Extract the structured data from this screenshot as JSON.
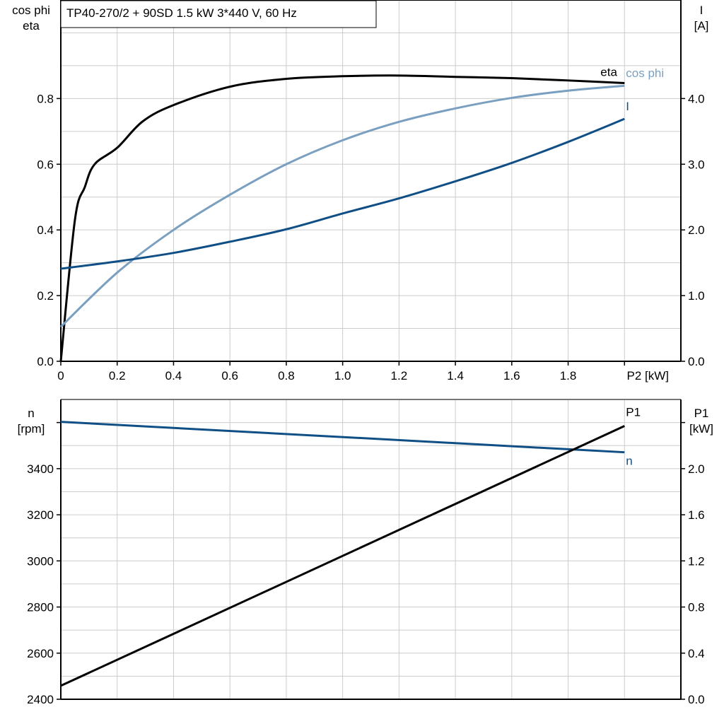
{
  "chart_data": [
    {
      "type": "line",
      "title": "TP40-270/2 + 90SD   1.5 kW   3*440 V, 60 Hz",
      "xlabel": "P2 [kW]",
      "ylabel_left": [
        "cos phi",
        "eta"
      ],
      "ylabel_right": [
        "I",
        "[A]"
      ],
      "xlim": [
        0,
        2.2
      ],
      "ylim_left": [
        0,
        1.1
      ],
      "ylim_right": [
        0,
        5.5
      ],
      "x_ticks": [
        "0",
        "0.2",
        "0.4",
        "0.6",
        "0.8",
        "1.0",
        "1.2",
        "1.4",
        "1.6",
        "1.8"
      ],
      "y_left_ticks": [
        "0.0",
        "0.2",
        "0.4",
        "0.6",
        "0.8"
      ],
      "y_right_ticks": [
        "0.0",
        "1.0",
        "2.0",
        "3.0",
        "4.0"
      ],
      "grid": true,
      "series": [
        {
          "name": "eta",
          "axis": "left",
          "color": "#000000",
          "x": [
            0,
            0.05,
            0.085,
            0.12,
            0.2,
            0.29,
            0.4,
            0.6,
            0.8,
            1.0,
            1.2,
            1.4,
            1.6,
            1.8,
            2.0
          ],
          "y": [
            0,
            0.43,
            0.53,
            0.6,
            0.65,
            0.73,
            0.78,
            0.836,
            0.86,
            0.868,
            0.87,
            0.866,
            0.862,
            0.855,
            0.847
          ]
        },
        {
          "name": "cos phi",
          "axis": "left",
          "color": "#7a9fc0",
          "x": [
            0,
            0.2,
            0.4,
            0.6,
            0.8,
            1.0,
            1.2,
            1.4,
            1.6,
            1.8,
            2.0
          ],
          "y": [
            0.105,
            0.27,
            0.4,
            0.507,
            0.6,
            0.673,
            0.729,
            0.77,
            0.802,
            0.824,
            0.839
          ]
        },
        {
          "name": "I",
          "axis": "right",
          "color": "#0f4f85",
          "x": [
            0,
            0.2,
            0.4,
            0.6,
            0.8,
            1.0,
            1.2,
            1.4,
            1.6,
            1.8,
            2.0
          ],
          "y": [
            1.41,
            1.52,
            1.65,
            1.82,
            2.01,
            2.25,
            2.48,
            2.74,
            3.02,
            3.34,
            3.69
          ]
        }
      ]
    },
    {
      "type": "line",
      "xlim": [
        0,
        2.2
      ],
      "ylabel_left": [
        "n",
        "[rpm]"
      ],
      "ylabel_right": [
        "P1",
        "[kW]"
      ],
      "ylim_left": [
        2400,
        3700
      ],
      "ylim_right": [
        0,
        2.6
      ],
      "y_left_ticks": [
        "2400",
        "2600",
        "2800",
        "3000",
        "3200",
        "3400"
      ],
      "y_right_ticks": [
        "0.0",
        "0.4",
        "0.8",
        "1.2",
        "1.6",
        "2.0"
      ],
      "grid": true,
      "series": [
        {
          "name": "n",
          "axis": "left",
          "color": "#0f4f85",
          "x": [
            0,
            2.0
          ],
          "y": [
            3603,
            3471
          ]
        },
        {
          "name": "P1",
          "axis": "right",
          "color": "#000000",
          "x": [
            0,
            2.0
          ],
          "y": [
            0.117,
            2.37
          ]
        }
      ]
    }
  ]
}
